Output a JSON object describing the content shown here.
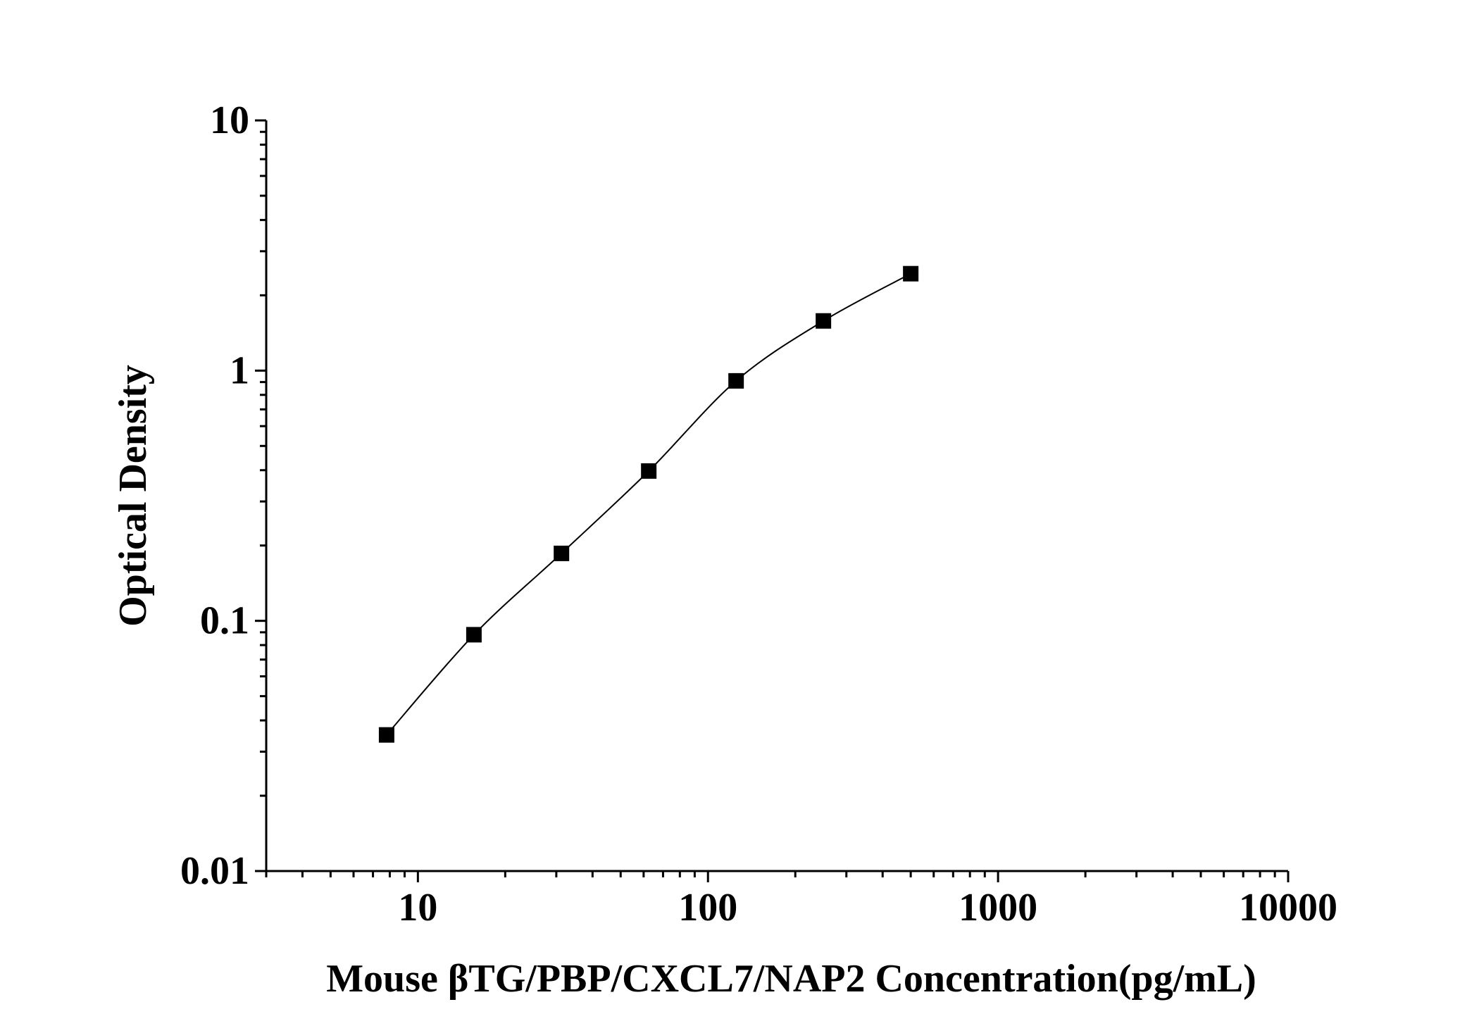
{
  "chart_data": {
    "type": "scatter",
    "title": "",
    "xlabel": "Mouse βTG/PBP/CXCL7/NAP2 Concentration(pg/mL)",
    "ylabel": "Optical Density",
    "xscale": "log",
    "yscale": "log",
    "xlim": [
      3,
      10000
    ],
    "ylim": [
      0.01,
      10
    ],
    "x_ticks": [
      10,
      100,
      1000,
      10000
    ],
    "x_tick_labels": [
      "10",
      "100",
      "1000",
      "10000"
    ],
    "y_ticks": [
      0.01,
      0.1,
      1,
      10
    ],
    "y_tick_labels": [
      "0.01",
      "0.1",
      "1",
      "10"
    ],
    "grid": false,
    "legend": "none",
    "series": [
      {
        "marker": "square",
        "line": "smooth",
        "color": "#000000",
        "x": [
          7.8,
          15.6,
          31.25,
          62.5,
          125,
          250,
          500
        ],
        "y": [
          0.035,
          0.088,
          0.186,
          0.397,
          0.91,
          1.58,
          2.44
        ]
      }
    ]
  }
}
